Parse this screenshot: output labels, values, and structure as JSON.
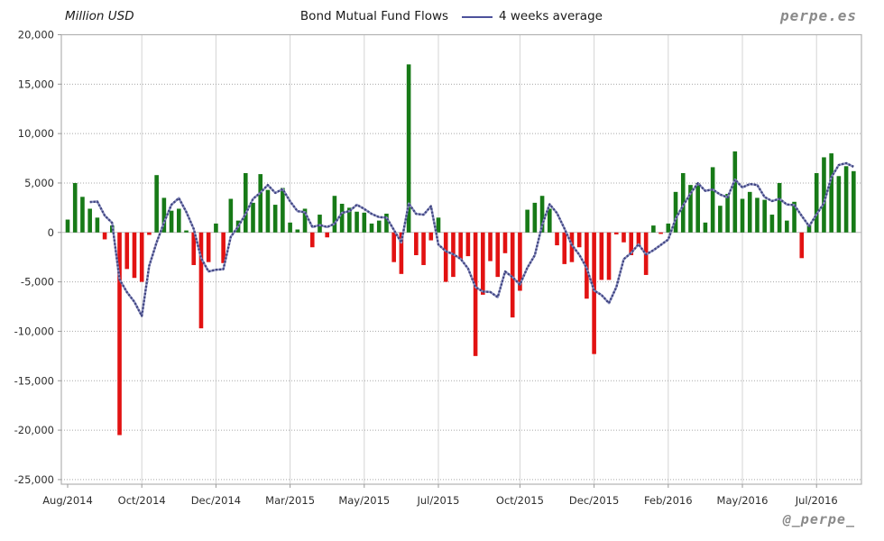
{
  "header": {
    "unit_label": "Million USD",
    "title": "Bond Mutual Fund Flows",
    "legend_label": "4 weeks average",
    "watermark": "perpe.es"
  },
  "footer": {
    "handle": "@_perpe_"
  },
  "chart_data": {
    "type": "bar",
    "title": "Bond Mutual Fund Flows",
    "unit": "Million USD",
    "frequency": "weekly",
    "series": [
      {
        "name": "Weekly bond mutual fund flows (Million USD)",
        "type": "bar",
        "values": [
          1300,
          5000,
          3600,
          2400,
          1500,
          -700,
          700,
          -20500,
          -3700,
          -4600,
          -5000,
          -250,
          5800,
          3500,
          2200,
          2400,
          200,
          -3300,
          -9700,
          -3000,
          900,
          -3100,
          3400,
          1200,
          6000,
          3000,
          5900,
          4300,
          2800,
          4500,
          1000,
          300,
          2400,
          -1500,
          1800,
          -500,
          3700,
          2900,
          2500,
          2100,
          2000,
          900,
          1200,
          1900,
          -3000,
          -4200,
          17000,
          -2300,
          -3300,
          -800,
          1500,
          -5000,
          -4500,
          -2700,
          -2400,
          -12500,
          -6300,
          -2900,
          -4500,
          -2100,
          -8600,
          -5900,
          2300,
          3000,
          3700,
          2400,
          -1300,
          -3200,
          -3000,
          -1500,
          -6700,
          -12300,
          -4800,
          -4800,
          -200,
          -1000,
          -2300,
          -1300,
          -4300,
          700,
          -150,
          900,
          4100,
          6000,
          4800,
          5000,
          1000,
          6600,
          2700,
          3900,
          8200,
          3400,
          4100,
          3500,
          3300,
          1800,
          5000,
          1200,
          3100,
          -2600,
          800,
          6000,
          7600,
          8000,
          5700,
          6700,
          6200
        ]
      },
      {
        "name": "4 weeks average",
        "type": "line",
        "derived": "trailing mean of 4 consecutive weekly bar values, plotted from the 4th week onward"
      }
    ],
    "x_labels": [
      {
        "label": "Aug/2014",
        "index": 0
      },
      {
        "label": "Oct/2014",
        "index": 10
      },
      {
        "label": "Dec/2014",
        "index": 20
      },
      {
        "label": "Mar/2015",
        "index": 30
      },
      {
        "label": "May/2015",
        "index": 40
      },
      {
        "label": "Jul/2015",
        "index": 50
      },
      {
        "label": "Oct/2015",
        "index": 61
      },
      {
        "label": "Dec/2015",
        "index": 71
      },
      {
        "label": "Feb/2016",
        "index": 81
      },
      {
        "label": "May/2016",
        "index": 91
      },
      {
        "label": "Jul/2016",
        "index": 101
      }
    ],
    "y_ticks": [
      {
        "value": 20000,
        "label": "20,000"
      },
      {
        "value": 15000,
        "label": "15,000"
      },
      {
        "value": 10000,
        "label": "10,000"
      },
      {
        "value": 5000,
        "label": "5,000"
      },
      {
        "value": 0,
        "label": "0"
      },
      {
        "value": -5000,
        "label": "-5,000"
      },
      {
        "value": -10000,
        "label": "-10,000"
      },
      {
        "value": -15000,
        "label": "-15,000"
      },
      {
        "value": -20000,
        "label": "-20,000"
      },
      {
        "value": -25000,
        "label": "-25,000"
      }
    ],
    "ylim": [
      -25000,
      20000
    ],
    "grid": "horizontal dotted + vertical at month labels",
    "legend_position": "top center, right of title",
    "colors": {
      "positive_bar": "#177a17",
      "negative_bar": "#e21212",
      "average_line_dark": "#3f447f",
      "average_line_light": "#8b8fc0",
      "grid_h": "#a8a8a8",
      "grid_v": "#d4d4d4",
      "zero_line": "#bdbdbd",
      "frame": "#b2b2b2",
      "axis_text": "#2e2e2e",
      "title_text": "#1a1a1a",
      "watermark_text": "#8a8a8a"
    }
  }
}
